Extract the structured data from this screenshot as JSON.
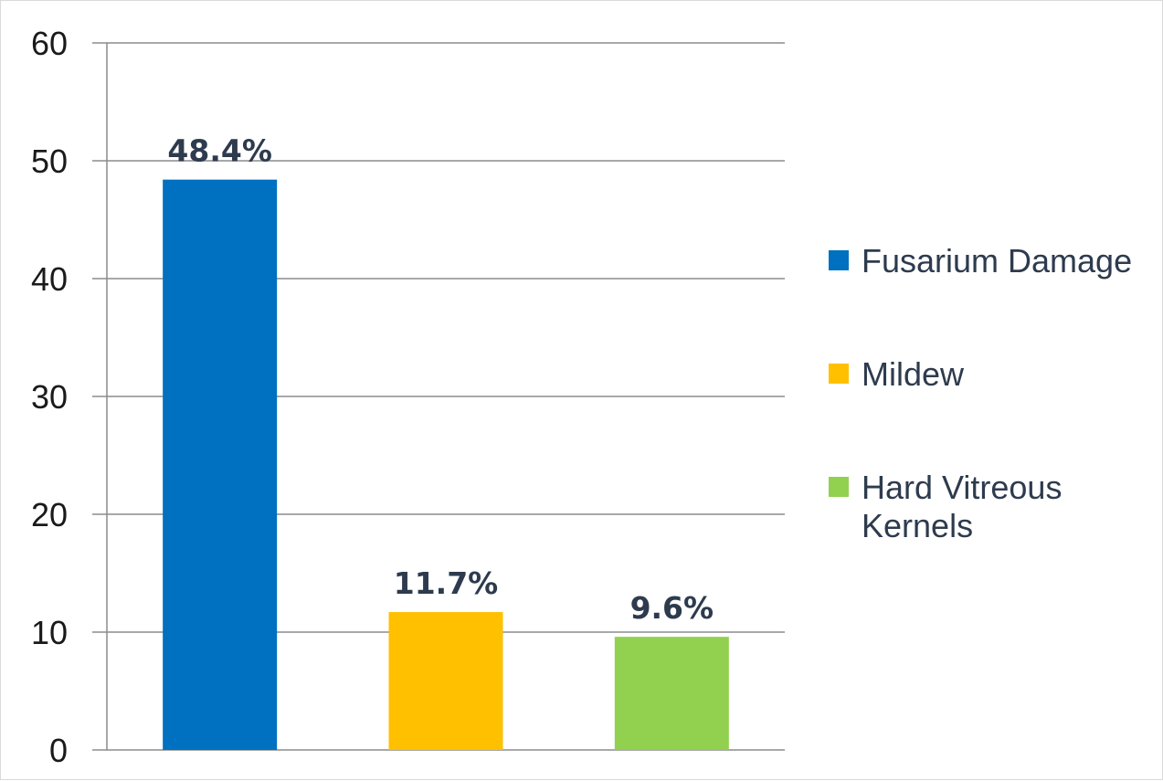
{
  "chart_data": {
    "type": "bar",
    "title": "",
    "xlabel": "",
    "ylabel": "",
    "ylim": [
      0,
      60
    ],
    "yticks": [
      0,
      10,
      20,
      30,
      40,
      50,
      60
    ],
    "grid": true,
    "legend_position": "right",
    "categories": [
      "Fusarium Damage",
      "Mildew",
      "Hard Vitreous Kernels"
    ],
    "values": [
      48.4,
      11.7,
      9.6
    ],
    "data_labels": [
      "48.4%",
      "11.7%",
      "9.6%"
    ],
    "colors": [
      "#0070c0",
      "#ffc000",
      "#92d050"
    ],
    "legend": [
      {
        "lines": [
          "Fusarium Damage"
        ],
        "color": "#0070c0"
      },
      {
        "lines": [
          "Mildew"
        ],
        "color": "#ffc000"
      },
      {
        "lines": [
          "Hard Vitreous",
          "Kernels"
        ],
        "color": "#92d050"
      }
    ]
  }
}
